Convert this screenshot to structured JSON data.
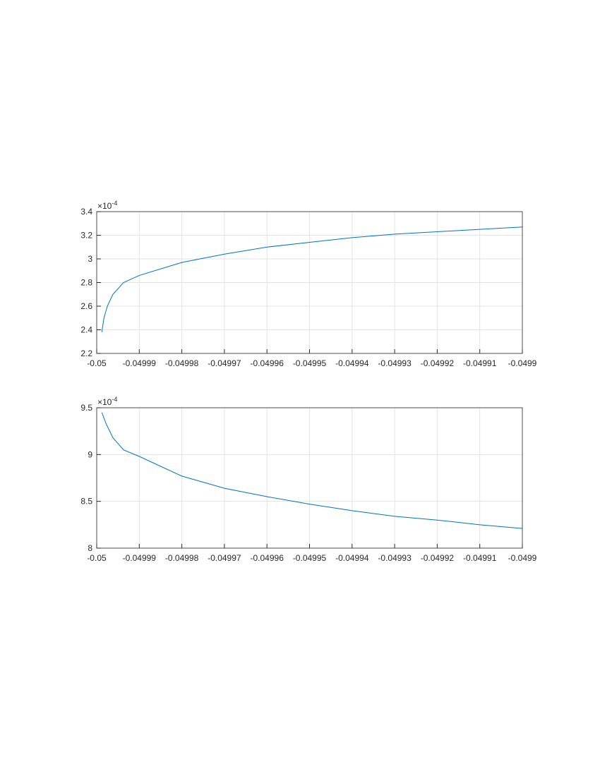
{
  "chart_data": [
    {
      "type": "line",
      "y_multiplier": "×10",
      "y_multiplier_exponent": "-4",
      "grid": true,
      "box": true,
      "xlim": [
        -0.05,
        -0.0499
      ],
      "xticks": [
        -0.05,
        -0.04999,
        -0.04998,
        -0.04997,
        -0.04996,
        -0.04995,
        -0.04994,
        -0.04993,
        -0.04992,
        -0.04991,
        -0.0499
      ],
      "ylim": [
        2.2,
        3.4
      ],
      "yticks": [
        2.2,
        2.4,
        2.6,
        2.8,
        3,
        3.2,
        3.4
      ],
      "x": [
        -0.0499988,
        -0.0499983,
        -0.0499975,
        -0.0499962,
        -0.0499937,
        -0.04999,
        -0.04998,
        -0.04997,
        -0.04996,
        -0.04995,
        -0.04994,
        -0.04993,
        -0.04992,
        -0.04991,
        -0.0499
      ],
      "series": [
        {
          "color": "#0072bd",
          "values": [
            2.38,
            2.5,
            2.6,
            2.7,
            2.8,
            2.86,
            2.97,
            3.04,
            3.1,
            3.14,
            3.18,
            3.21,
            3.23,
            3.25,
            3.27
          ]
        }
      ]
    },
    {
      "type": "line",
      "y_multiplier": "×10",
      "y_multiplier_exponent": "-4",
      "grid": true,
      "box": true,
      "xlim": [
        -0.05,
        -0.0499
      ],
      "xticks": [
        -0.05,
        -0.04999,
        -0.04998,
        -0.04997,
        -0.04996,
        -0.04995,
        -0.04994,
        -0.04993,
        -0.04992,
        -0.04991,
        -0.0499
      ],
      "ylim": [
        8,
        9.5
      ],
      "yticks": [
        8,
        8.5,
        9,
        9.5
      ],
      "x": [
        -0.0499988,
        -0.0499978,
        -0.0499962,
        -0.0499937,
        -0.04999,
        -0.04998,
        -0.04997,
        -0.04996,
        -0.04995,
        -0.04994,
        -0.04993,
        -0.04992,
        -0.04991,
        -0.0499
      ],
      "series": [
        {
          "color": "#0072bd",
          "values": [
            9.45,
            9.33,
            9.18,
            9.05,
            8.98,
            8.77,
            8.64,
            8.55,
            8.47,
            8.4,
            8.34,
            8.3,
            8.25,
            8.21
          ]
        }
      ]
    }
  ]
}
